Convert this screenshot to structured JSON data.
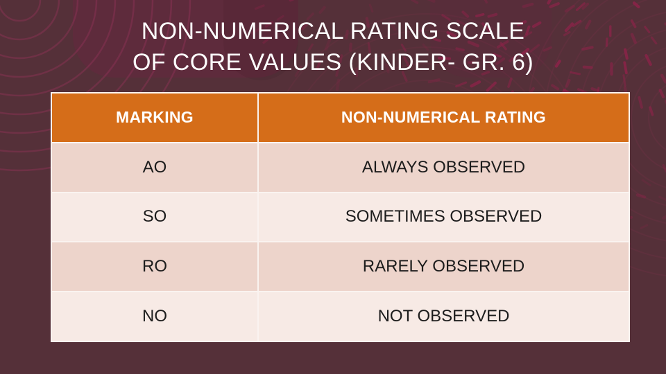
{
  "slide": {
    "title": {
      "line1": "NON-NUMERICAL RATING SCALE",
      "line2": "OF CORE VALUES (KINDER- GR. 6)"
    },
    "table": {
      "columns": [
        "MARKING",
        "NON-NUMERICAL RATING"
      ],
      "rows": [
        {
          "marking": "AO",
          "rating": "ALWAYS OBSERVED"
        },
        {
          "marking": "SO",
          "rating": "SOMETIMES OBSERVED"
        },
        {
          "marking": "RO",
          "rating": "RARELY OBSERVED"
        },
        {
          "marking": "NO",
          "rating": "NOT OBSERVED"
        }
      ]
    },
    "colors": {
      "background": "#553039",
      "header_orange": "#D56D19",
      "row_dark_pink": "#EDD4CB",
      "row_light_pink": "#F7EAE5",
      "table_border": "#FAF3F0",
      "title_text": "#FFFFFF",
      "body_text": "#1C1C1C",
      "dash_accent": "#8C2349",
      "arc_accent": "#8A3153",
      "blob_shade": "#5E2B3C"
    }
  }
}
